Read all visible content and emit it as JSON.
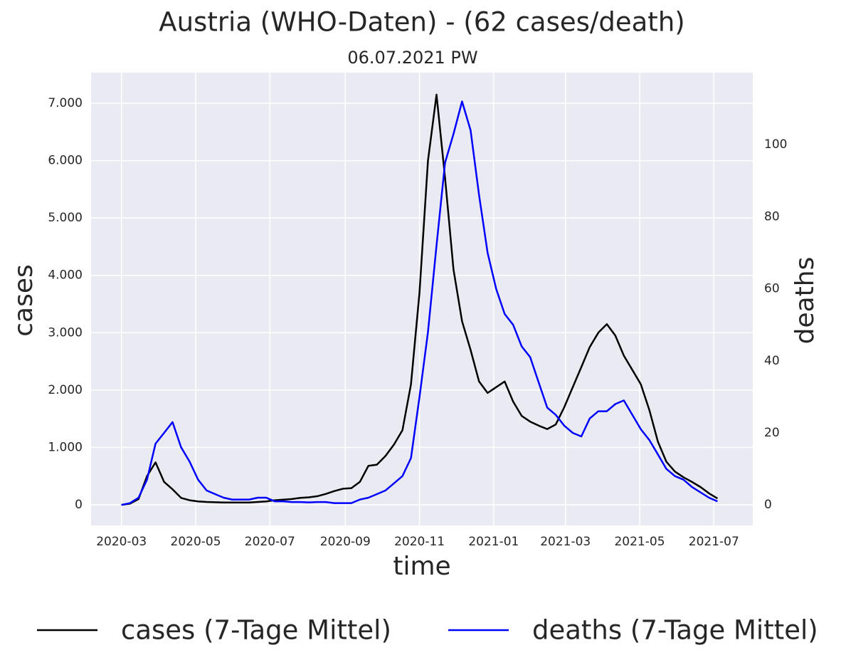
{
  "chart_data": {
    "type": "line",
    "title": "Austria (WHO-Daten) - (62 cases/death)",
    "subtitle": "06.07.2021 PW",
    "xlabel": "time",
    "ylabel": "cases",
    "y2label": "deaths",
    "x": [
      0,
      7,
      14,
      21,
      28,
      35,
      42,
      49,
      56,
      63,
      70,
      77,
      84,
      91,
      98,
      105,
      112,
      119,
      126,
      133,
      140,
      147,
      154,
      161,
      168,
      175,
      182,
      189,
      196,
      203,
      210,
      217,
      224,
      231,
      238,
      245,
      252,
      259,
      266,
      273,
      280,
      287,
      294,
      301,
      308,
      315,
      322,
      329,
      336,
      343,
      350,
      357,
      364,
      371,
      378,
      385,
      392,
      399,
      406,
      413,
      420,
      427,
      434,
      441,
      448,
      455,
      462,
      469,
      476,
      483,
      490
    ],
    "series": [
      {
        "name": "cases (7-Tage Mittel)",
        "color": "#000000",
        "values": [
          0,
          20,
          100,
          500,
          740,
          400,
          270,
          120,
          80,
          60,
          50,
          45,
          40,
          40,
          40,
          40,
          50,
          60,
          80,
          90,
          100,
          120,
          130,
          150,
          190,
          240,
          280,
          290,
          400,
          680,
          700,
          850,
          1050,
          1300,
          2100,
          3700,
          6000,
          7150,
          5700,
          4100,
          3200,
          2700,
          2150,
          1950,
          2050,
          2150,
          1800,
          1550,
          1450,
          1380,
          1320,
          1400,
          1700,
          2050,
          2400,
          2750,
          3000,
          3150,
          2950,
          2600,
          2350,
          2100,
          1650,
          1100,
          750,
          580,
          480,
          400,
          310,
          200,
          110
        ]
      },
      {
        "name": "deaths (7-Tage Mittel)",
        "color": "#0000ff",
        "axis": "y2",
        "values": [
          0,
          0.5,
          2,
          7,
          17,
          20,
          23,
          16,
          12,
          7,
          4,
          3,
          2,
          1.5,
          1.5,
          1.5,
          2,
          2,
          1,
          1,
          0.8,
          0.8,
          0.7,
          0.8,
          0.8,
          0.5,
          0.5,
          0.5,
          1.5,
          2,
          3,
          4,
          6,
          8,
          13,
          30,
          48,
          72,
          95,
          103,
          112,
          104,
          86,
          70,
          60,
          53,
          50,
          44,
          41,
          34,
          27,
          25,
          22,
          20,
          19,
          24,
          26,
          26,
          28,
          29,
          25,
          21,
          18,
          14,
          10,
          8,
          7,
          5,
          3.5,
          2,
          1
        ]
      }
    ],
    "xlim": [
      -25,
      519
    ],
    "xticks": [
      {
        "value": 0,
        "label": "2020-03"
      },
      {
        "value": 61,
        "label": "2020-05"
      },
      {
        "value": 122,
        "label": "2020-07"
      },
      {
        "value": 184,
        "label": "2020-09"
      },
      {
        "value": 245,
        "label": "2020-11"
      },
      {
        "value": 306,
        "label": "2021-01"
      },
      {
        "value": 365,
        "label": "2021-03"
      },
      {
        "value": 426,
        "label": "2021-05"
      },
      {
        "value": 487,
        "label": "2021-07"
      }
    ],
    "ylim": [
      -360,
      7534
    ],
    "yticks": [
      0,
      {
        "value": 1000,
        "label": "1.000"
      },
      {
        "value": 2000,
        "label": "2.000"
      },
      {
        "value": 3000,
        "label": "3.000"
      },
      {
        "value": 4000,
        "label": "4.000"
      },
      {
        "value": 5000,
        "label": "5.000"
      },
      {
        "value": 6000,
        "label": "6.000"
      },
      {
        "value": 7000,
        "label": "7.000"
      }
    ],
    "y2lim": [
      -5.7,
      120
    ],
    "y2ticks": [
      0,
      20,
      40,
      60,
      80,
      100
    ],
    "grid": true,
    "legend": "bottom"
  }
}
